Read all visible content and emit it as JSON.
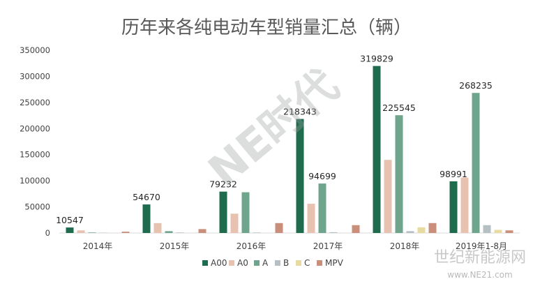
{
  "chart_data": {
    "type": "bar",
    "title": "历年来各纯电动车型销量汇总（辆）",
    "categories": [
      "2014年",
      "2015年",
      "2016年",
      "2017年",
      "2018年",
      "2019年1-8月"
    ],
    "series": [
      {
        "name": "A00",
        "color": "#1f6b4e",
        "values": [
          10547,
          54670,
          79232,
          218343,
          319829,
          98991
        ]
      },
      {
        "name": "A0",
        "color": "#e8c2b0",
        "values": [
          5000,
          19000,
          37000,
          56000,
          140000,
          106000
        ]
      },
      {
        "name": "A",
        "color": "#6fa58c",
        "values": [
          1000,
          3500,
          78000,
          94699,
          225545,
          268235
        ]
      },
      {
        "name": "B",
        "color": "#b6bfc4",
        "values": [
          500,
          1000,
          1000,
          1500,
          3500,
          15000
        ]
      },
      {
        "name": "C",
        "color": "#e8dba2",
        "values": [
          0,
          0,
          0,
          0,
          11000,
          6000
        ]
      },
      {
        "name": "MPV",
        "color": "#c98f7a",
        "values": [
          2500,
          7500,
          19000,
          15000,
          19000,
          5000
        ]
      }
    ],
    "data_labels": [
      {
        "series": "A00",
        "category": "2014年",
        "text": "10547"
      },
      {
        "series": "A00",
        "category": "2015年",
        "text": "54670"
      },
      {
        "series": "A00",
        "category": "2016年",
        "text": "79232"
      },
      {
        "series": "A00",
        "category": "2017年",
        "text": "218343"
      },
      {
        "series": "A",
        "category": "2017年",
        "text": "94699"
      },
      {
        "series": "A00",
        "category": "2018年",
        "text": "319829"
      },
      {
        "series": "A",
        "category": "2018年",
        "text": "225545"
      },
      {
        "series": "A00",
        "category": "2019年1-8月",
        "text": "98991"
      },
      {
        "series": "A",
        "category": "2019年1-8月",
        "text": "268235"
      }
    ],
    "yticks": [
      "0",
      "50000",
      "100000",
      "150000",
      "200000",
      "250000",
      "300000",
      "350000"
    ],
    "ylim": [
      0,
      350000
    ],
    "grid": false,
    "legend_position": "bottom"
  },
  "watermark": {
    "main": "NE时代",
    "site_name": "世纪新能源网",
    "site_url": "www.NE21.com"
  }
}
